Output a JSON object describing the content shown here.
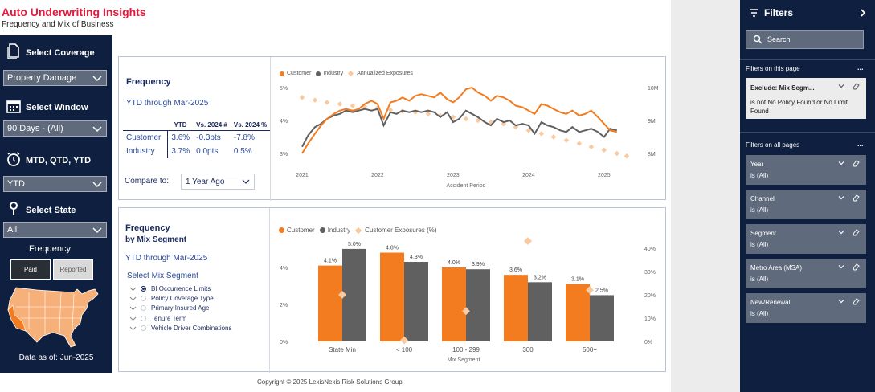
{
  "header": {
    "title": "Auto Underwriting Insights",
    "subtitle": "Frequency and Mix of Business"
  },
  "left_panel": {
    "coverage_label": "Select Coverage",
    "coverage_value": "Property Damage",
    "window_label": "Select Window",
    "window_value": "90 Days - (All)",
    "period_label": "MTD, QTD, YTD",
    "period_value": "YTD",
    "state_label": "Select State",
    "state_value": "All",
    "frequency_label": "Frequency",
    "paid_label": "Paid",
    "reported_label": "Reported",
    "data_asof": "Data as of: Jun-2025"
  },
  "freq_card": {
    "title": "Frequency",
    "subtitle": "YTD through Mar-2025",
    "table": {
      "headers": [
        "YTD",
        "Vs. 2024 #",
        "Vs. 2024 %"
      ],
      "rows": [
        {
          "label": "Customer",
          "ytd": "3.6%",
          "vs_num": "-0.3pts",
          "vs_pct": "-7.8%"
        },
        {
          "label": "Industry",
          "ytd": "3.7%",
          "vs_num": "0.0pts",
          "vs_pct": "0.5%"
        }
      ]
    },
    "compare_label": "Compare to:",
    "compare_value": "1 Year Ago",
    "legend": [
      "Customer",
      "Industry",
      "Annualized Exposures"
    ]
  },
  "mix_card": {
    "title_1": "Frequency",
    "title_2": "by Mix Segment",
    "subtitle": "YTD through Mar-2025",
    "select_label": "Select Mix Segment",
    "options": [
      {
        "label": "BI Occurrence Limits",
        "selected": true
      },
      {
        "label": "Policy Coverage Type",
        "selected": false
      },
      {
        "label": "Primary Insured Age",
        "selected": false
      },
      {
        "label": "Tenure Term",
        "selected": false
      },
      {
        "label": "Vehicle Driver Combinations",
        "selected": false
      }
    ],
    "legend": [
      "Customer",
      "Industry",
      "Customer Exposures (%)"
    ]
  },
  "filters": {
    "title": "Filters",
    "search_placeholder": "Search",
    "on_this_page": "Filters on this page",
    "on_all_pages": "Filters on all pages",
    "more": "...",
    "exclude": {
      "title": "Exclude: Mix Segm...",
      "desc": "is not No Policy Found or No Limit Found"
    },
    "cards": [
      {
        "title": "Year",
        "value": "is (All)"
      },
      {
        "title": "Channel",
        "value": "is (All)"
      },
      {
        "title": "Segment",
        "value": "is (All)"
      },
      {
        "title": "Metro Area (MSA)",
        "value": "is (All)"
      },
      {
        "title": "New/Renewal",
        "value": "is (All)"
      }
    ]
  },
  "copyright": "Copyright © 2025 LexisNexis Risk Solutions Group",
  "colors": {
    "customer": "#f47c20",
    "industry": "#606060",
    "exposure": "#f9c9a0",
    "navy": "#0f1f3f",
    "title_red": "#e8173b"
  },
  "chart_data": [
    {
      "type": "line",
      "title": "Frequency",
      "xlabel": "Accident Period",
      "ylabel_left": "Frequency",
      "ylabel_right": "Annualized Exposures",
      "x_ticks": [
        "2021",
        "2022",
        "2023",
        "2024",
        "2025"
      ],
      "y_ticks": [
        "3%",
        "4%",
        "5%"
      ],
      "y2_ticks": [
        "8M",
        "9M",
        "10M"
      ],
      "ylim": [
        2.95,
        5.05
      ],
      "y2lim": [
        7.95,
        10.05
      ],
      "xlim": [
        2021,
        2025.3
      ],
      "series": [
        {
          "name": "Customer",
          "axis": "left",
          "x": [
            2021.0,
            2021.08,
            2021.17,
            2021.25,
            2021.33,
            2021.42,
            2021.5,
            2021.58,
            2021.67,
            2021.75,
            2021.83,
            2021.92,
            2022.0,
            2022.08,
            2022.17,
            2022.25,
            2022.33,
            2022.42,
            2022.5,
            2022.58,
            2022.67,
            2022.75,
            2022.83,
            2022.92,
            2023.0,
            2023.08,
            2023.17,
            2023.25,
            2023.33,
            2023.42,
            2023.5,
            2023.58,
            2023.67,
            2023.75,
            2023.83,
            2023.92,
            2024.0,
            2024.08,
            2024.17,
            2024.25,
            2024.33,
            2024.42,
            2024.5,
            2024.58,
            2024.67,
            2024.75,
            2024.83,
            2024.92,
            2025.0,
            2025.08,
            2025.17
          ],
          "values": [
            3.0,
            3.3,
            3.6,
            3.85,
            4.05,
            4.2,
            4.3,
            4.35,
            4.3,
            4.35,
            4.5,
            4.6,
            4.5,
            4.05,
            4.55,
            4.6,
            4.7,
            4.6,
            4.75,
            4.8,
            4.75,
            4.7,
            4.85,
            4.65,
            4.55,
            4.7,
            4.95,
            5.0,
            4.85,
            4.75,
            4.6,
            4.75,
            4.7,
            4.6,
            4.45,
            4.4,
            4.3,
            4.2,
            4.5,
            4.45,
            4.35,
            4.25,
            4.2,
            4.3,
            4.15,
            4.2,
            4.3,
            4.1,
            3.9,
            3.7,
            3.65
          ]
        },
        {
          "name": "Industry",
          "axis": "left",
          "x": [
            2021.0,
            2021.08,
            2021.17,
            2021.25,
            2021.33,
            2021.42,
            2021.5,
            2021.58,
            2021.67,
            2021.75,
            2021.83,
            2021.92,
            2022.0,
            2022.08,
            2022.17,
            2022.25,
            2022.33,
            2022.42,
            2022.5,
            2022.58,
            2022.67,
            2022.75,
            2022.83,
            2022.92,
            2023.0,
            2023.08,
            2023.17,
            2023.25,
            2023.33,
            2023.42,
            2023.5,
            2023.58,
            2023.67,
            2023.75,
            2023.83,
            2023.92,
            2024.0,
            2024.08,
            2024.17,
            2024.25,
            2024.33,
            2024.42,
            2024.5,
            2024.58,
            2024.67,
            2024.75,
            2024.83,
            2024.92,
            2025.0,
            2025.08,
            2025.17
          ],
          "values": [
            3.2,
            3.55,
            3.8,
            3.9,
            4.05,
            4.15,
            4.2,
            4.3,
            4.25,
            4.3,
            4.35,
            4.3,
            4.35,
            3.85,
            4.25,
            4.2,
            4.3,
            4.25,
            4.3,
            4.25,
            4.3,
            4.25,
            4.1,
            4.25,
            3.95,
            4.05,
            4.3,
            4.2,
            4.1,
            3.95,
            3.85,
            4.05,
            3.95,
            4.0,
            3.85,
            3.9,
            3.85,
            3.6,
            3.95,
            3.85,
            3.8,
            3.7,
            3.65,
            3.8,
            3.65,
            3.7,
            3.75,
            3.65,
            3.5,
            3.75,
            3.7
          ]
        },
        {
          "name": "Annualized Exposures",
          "axis": "right",
          "x": [
            2021.0,
            2021.17,
            2021.33,
            2021.5,
            2021.67,
            2021.83,
            2022.0,
            2022.17,
            2022.33,
            2022.5,
            2022.67,
            2022.83,
            2023.0,
            2023.17,
            2023.33,
            2023.5,
            2023.67,
            2023.83,
            2024.0,
            2024.17,
            2024.33,
            2024.5,
            2024.67,
            2024.83,
            2025.0,
            2025.17,
            2025.3
          ],
          "values": [
            9.7,
            9.62,
            9.55,
            9.5,
            9.45,
            9.42,
            9.38,
            9.32,
            9.28,
            9.25,
            9.2,
            9.15,
            9.1,
            9.05,
            9.0,
            8.95,
            8.9,
            8.8,
            8.7,
            8.6,
            8.5,
            8.4,
            8.3,
            8.2,
            8.1,
            8.0,
            7.92
          ]
        }
      ]
    },
    {
      "type": "bar",
      "title": "Frequency by Mix Segment",
      "xlabel": "Mix Segment",
      "categories": [
        "State Min",
        "< 100",
        "100 - 299",
        "300",
        "500+"
      ],
      "y_ticks": [
        "0%",
        "2%",
        "4%"
      ],
      "y2_ticks": [
        "0%",
        "10%",
        "20%",
        "30%",
        "40%"
      ],
      "ylim": [
        0,
        5.3
      ],
      "y2lim": [
        0,
        42
      ],
      "series": [
        {
          "name": "Customer",
          "axis": "left",
          "values": [
            4.1,
            4.8,
            4.0,
            3.6,
            3.1
          ],
          "labels": [
            "4.1%",
            "4.8%",
            "4.0%",
            "3.6%",
            "3.1%"
          ]
        },
        {
          "name": "Industry",
          "axis": "left",
          "values": [
            5.0,
            4.3,
            3.9,
            3.2,
            2.5
          ],
          "labels": [
            "5.0%",
            "4.3%",
            "3.9%",
            "3.2%",
            "2.5%"
          ]
        },
        {
          "name": "Customer Exposures (%)",
          "axis": "right",
          "values": [
            20,
            0.5,
            13,
            43,
            22
          ]
        }
      ]
    }
  ]
}
